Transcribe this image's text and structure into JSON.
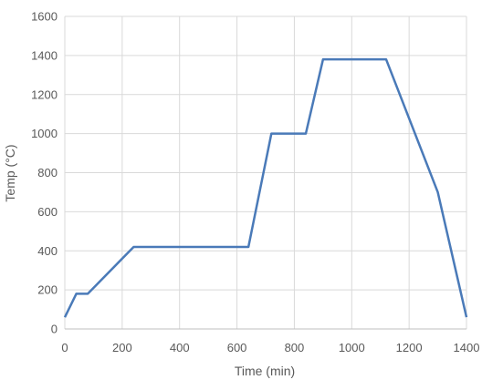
{
  "chart_data": {
    "type": "line",
    "title": "",
    "xlabel": "Time (min)",
    "ylabel": "Temp (°C)",
    "xlim": [
      0,
      1400
    ],
    "ylim": [
      0,
      1600
    ],
    "xticks": [
      0,
      200,
      400,
      600,
      800,
      1000,
      1200,
      1400
    ],
    "yticks": [
      0,
      200,
      400,
      600,
      800,
      1000,
      1200,
      1400,
      1600
    ],
    "xtick_labels": [
      "0",
      "200",
      "400",
      "600",
      "800",
      "1000",
      "1200",
      "1400"
    ],
    "ytick_labels": [
      "0",
      "200",
      "400",
      "600",
      "800",
      "1000",
      "1200",
      "1400",
      "1600"
    ],
    "grid": true,
    "legend": "none",
    "series": [
      {
        "color": "#4a7ab8",
        "x": [
          0,
          40,
          80,
          240,
          640,
          720,
          840,
          900,
          1120,
          1300,
          1400
        ],
        "y": [
          60,
          180,
          180,
          420,
          420,
          1000,
          1000,
          1380,
          1380,
          700,
          60
        ]
      }
    ]
  }
}
